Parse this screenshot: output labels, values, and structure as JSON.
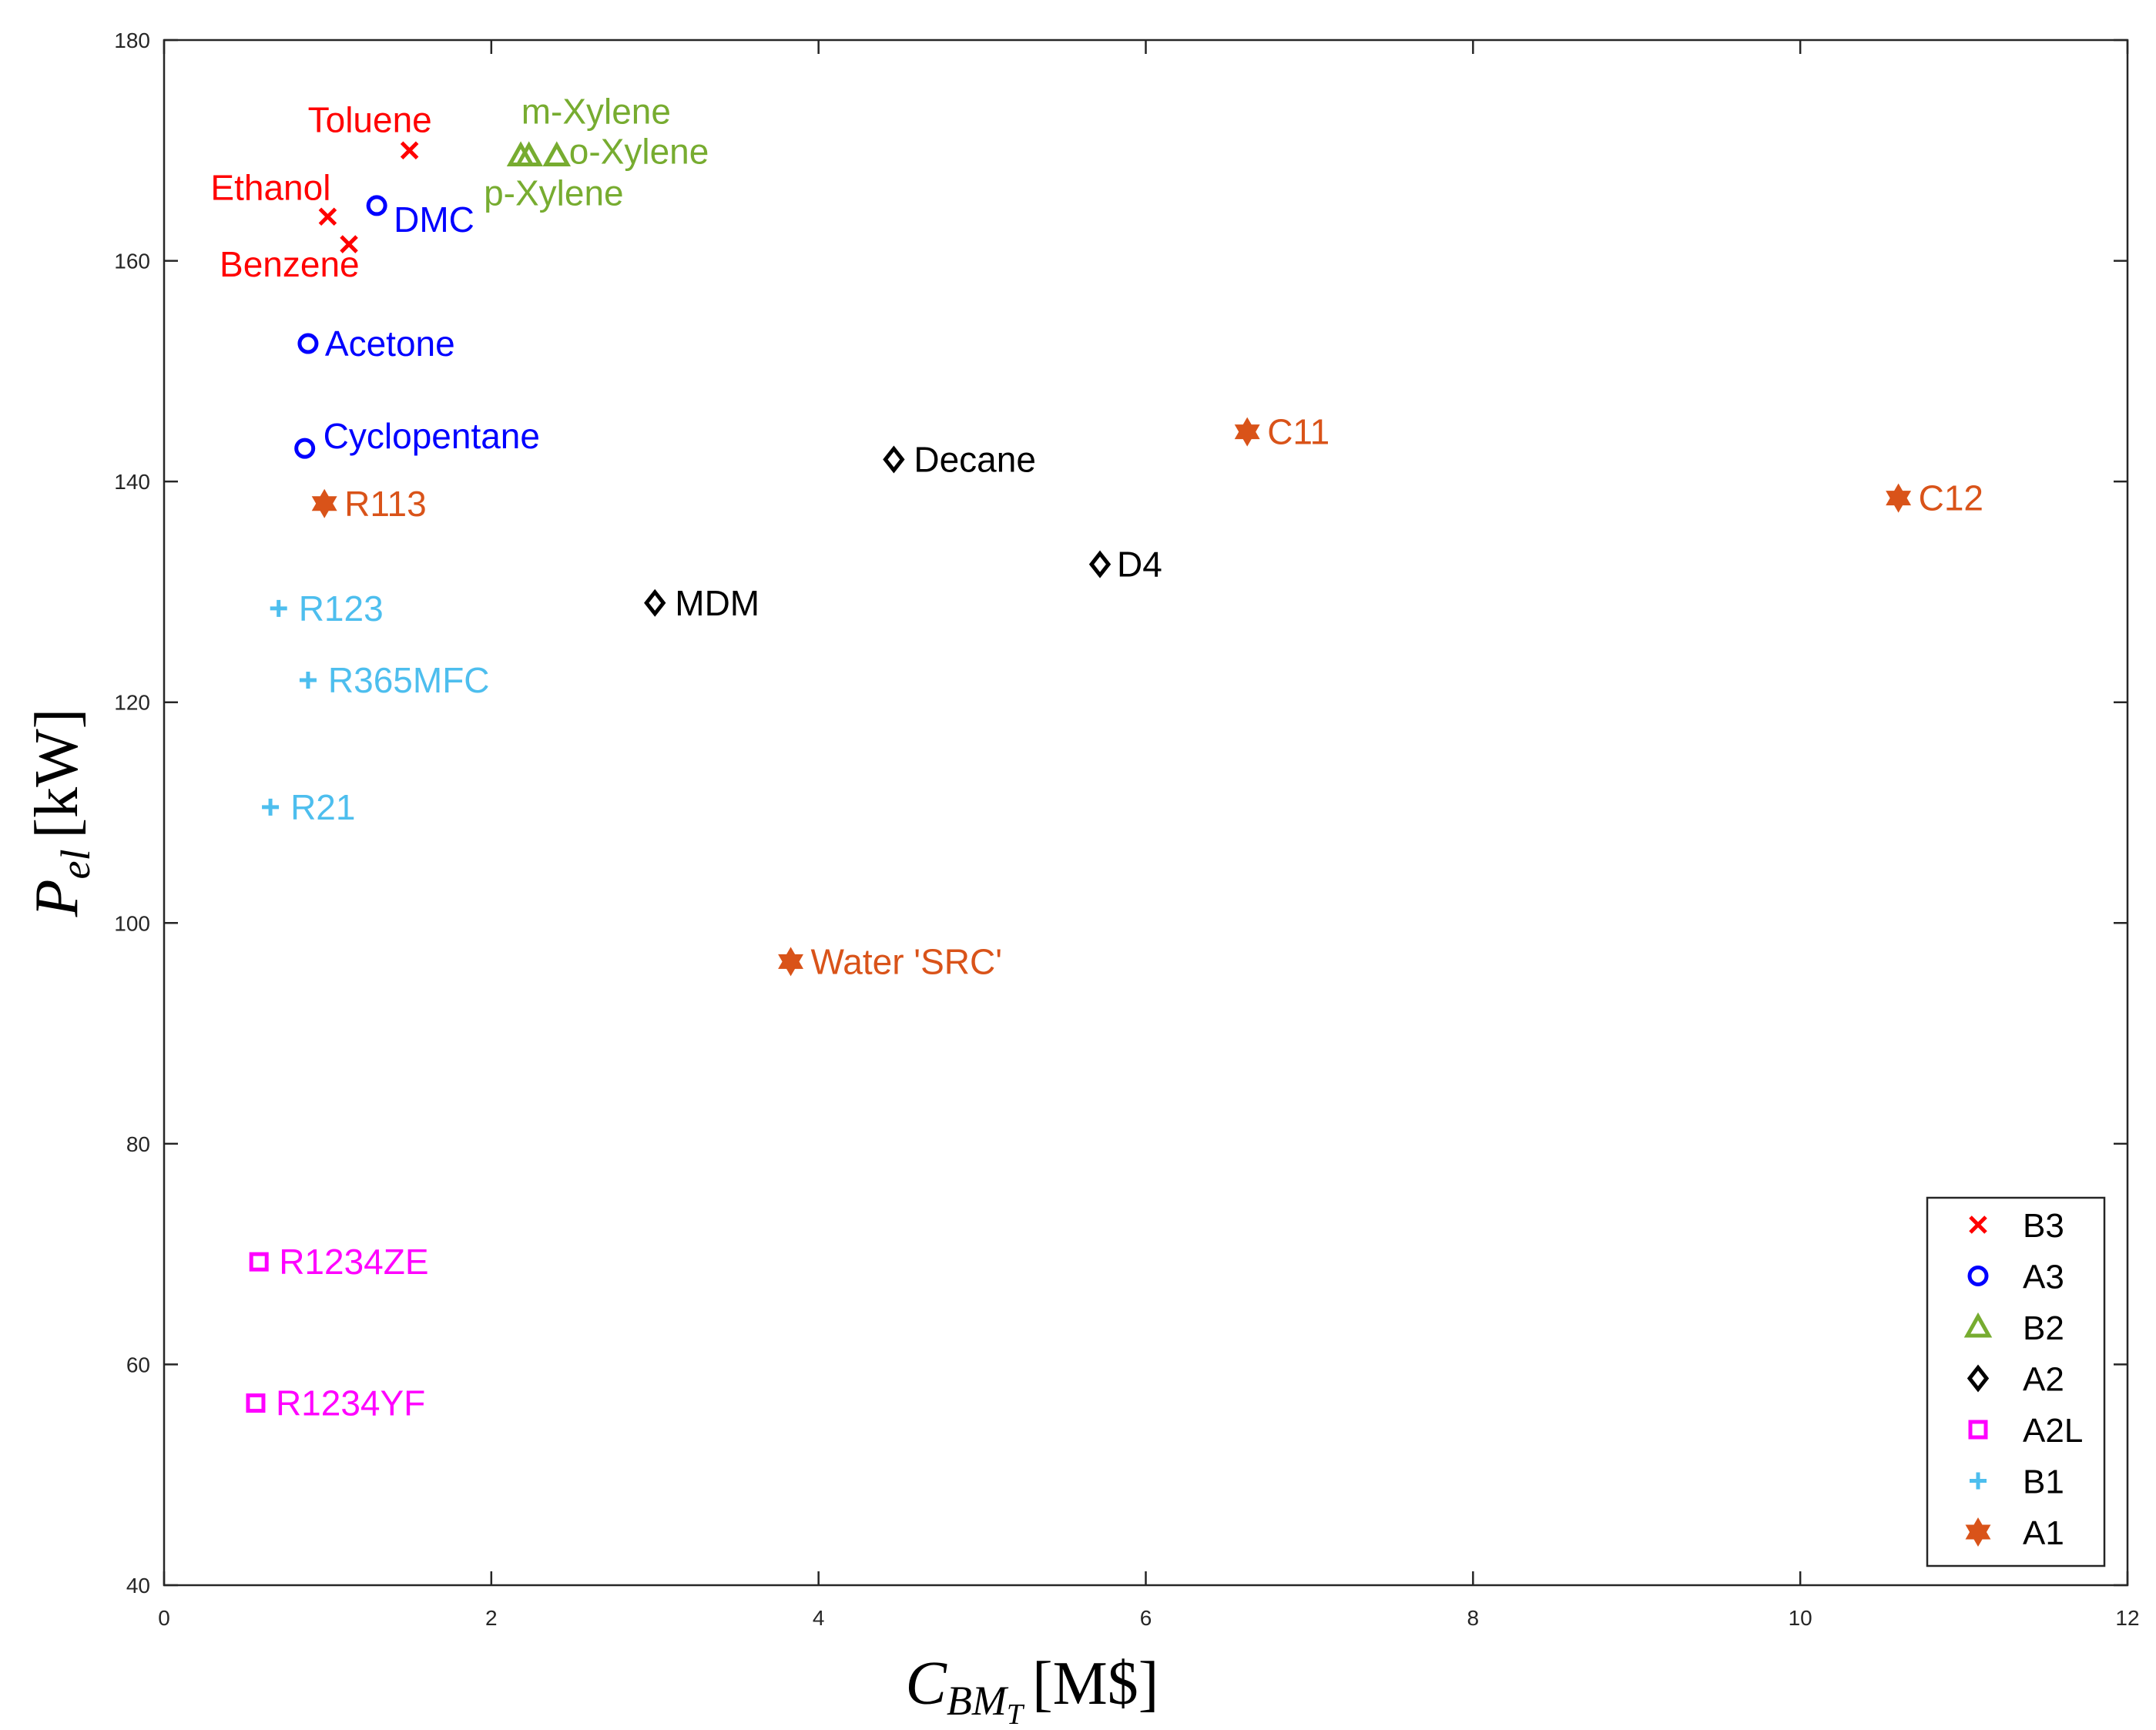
{
  "chart_data": {
    "type": "scatter",
    "title": "",
    "xlabel": {
      "main": "C",
      "sub": "BM",
      "subsub": "T",
      "unit": "[M$]"
    },
    "ylabel": {
      "main": "P",
      "sub": "el",
      "unit": "[kW]"
    },
    "xlim": [
      0,
      12
    ],
    "ylim": [
      40,
      180
    ],
    "xticks": [
      0,
      2,
      4,
      6,
      8,
      10,
      12
    ],
    "yticks": [
      40,
      60,
      80,
      100,
      120,
      140,
      160,
      180
    ],
    "grid": false,
    "legend_position": "bottom-right",
    "series": [
      {
        "name": "B3",
        "marker": "x",
        "color": "#FF0000",
        "points": [
          {
            "label": "Toluene",
            "x": 1.5,
            "y": 170
          },
          {
            "label": "Ethanol",
            "x": 1.0,
            "y": 164
          },
          {
            "label": "Benzene",
            "x": 1.13,
            "y": 161.5
          }
        ]
      },
      {
        "name": "A3",
        "marker": "circle",
        "color": "#0000FF",
        "points": [
          {
            "label": "DMC",
            "x": 1.3,
            "y": 165
          },
          {
            "label": "Acetone",
            "x": 0.88,
            "y": 152.5
          },
          {
            "label": "Cyclopentane",
            "x": 0.86,
            "y": 143
          }
        ]
      },
      {
        "name": "B2",
        "marker": "triangle",
        "color": "#77AC30",
        "points": [
          {
            "label": "m-Xylene",
            "x": 2.23,
            "y": 169.5
          },
          {
            "label": "o-Xylene",
            "x": 2.4,
            "y": 169.5
          },
          {
            "label": "p-Xylene",
            "x": 2.18,
            "y": 169.5
          }
        ]
      },
      {
        "name": "A2",
        "marker": "diamond",
        "color": "#000000",
        "points": [
          {
            "label": "Decane",
            "x": 4.46,
            "y": 142
          },
          {
            "label": "D4",
            "x": 5.72,
            "y": 132.5
          },
          {
            "label": "MDM",
            "x": 3.0,
            "y": 129
          }
        ]
      },
      {
        "name": "A2L",
        "marker": "square",
        "color": "#FF00FF",
        "points": [
          {
            "label": "R1234ZE",
            "x": 0.58,
            "y": 69.3
          },
          {
            "label": "R1234YF",
            "x": 0.56,
            "y": 56.5
          }
        ]
      },
      {
        "name": "B1",
        "marker": "plus",
        "color": "#4DBEEE",
        "points": [
          {
            "label": "R123",
            "x": 0.7,
            "y": 128.5
          },
          {
            "label": "R365MFC",
            "x": 0.88,
            "y": 122
          },
          {
            "label": "R21",
            "x": 0.65,
            "y": 110.5
          }
        ]
      },
      {
        "name": "A1",
        "marker": "hexagram",
        "color": "#D95319",
        "points": [
          {
            "label": "R113",
            "x": 0.98,
            "y": 138
          },
          {
            "label": "C11",
            "x": 6.62,
            "y": 144.5
          },
          {
            "label": "C12",
            "x": 10.6,
            "y": 138.5
          },
          {
            "label": "Water 'SRC'",
            "x": 3.83,
            "y": 96.5
          }
        ]
      }
    ]
  }
}
